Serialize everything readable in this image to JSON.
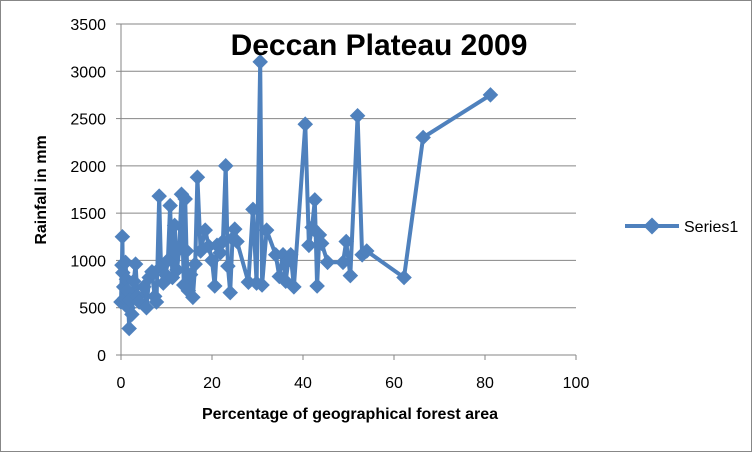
{
  "chart_data": {
    "type": "line",
    "title": "Deccan Plateau 2009",
    "xlabel": "Percentage of geographical forest area",
    "ylabel": "Rainfall in mm",
    "xlim": [
      0,
      100
    ],
    "ylim": [
      0,
      3500
    ],
    "x_ticks": [
      0,
      20,
      40,
      60,
      80,
      100
    ],
    "y_ticks": [
      0,
      500,
      1000,
      1500,
      2000,
      2500,
      3000,
      3500
    ],
    "grid": "horizontal",
    "legend_position": "right",
    "series_color": "#4f81bd",
    "series": [
      {
        "name": "Series1",
        "points": [
          [
            0.0,
            560
          ],
          [
            0.2,
            950
          ],
          [
            0.3,
            1250
          ],
          [
            0.4,
            870
          ],
          [
            0.6,
            720
          ],
          [
            0.8,
            600
          ],
          [
            1.0,
            980
          ],
          [
            1.2,
            800
          ],
          [
            1.4,
            680
          ],
          [
            1.6,
            500
          ],
          [
            1.8,
            280
          ],
          [
            2.0,
            580
          ],
          [
            2.4,
            430
          ],
          [
            2.8,
            780
          ],
          [
            3.2,
            960
          ],
          [
            3.6,
            620
          ],
          [
            4.0,
            560
          ],
          [
            5.0,
            720
          ],
          [
            5.6,
            500
          ],
          [
            6.2,
            820
          ],
          [
            6.8,
            880
          ],
          [
            7.4,
            620
          ],
          [
            7.8,
            560
          ],
          [
            8.4,
            1680
          ],
          [
            8.8,
            930
          ],
          [
            9.3,
            760
          ],
          [
            9.8,
            850
          ],
          [
            10.3,
            1000
          ],
          [
            10.8,
            1580
          ],
          [
            11.3,
            820
          ],
          [
            11.8,
            1370
          ],
          [
            12.3,
            900
          ],
          [
            12.8,
            1120
          ],
          [
            13.3,
            1700
          ],
          [
            13.8,
            740
          ],
          [
            14.1,
            1650
          ],
          [
            14.4,
            1100
          ],
          [
            14.8,
            680
          ],
          [
            15.3,
            850
          ],
          [
            15.8,
            610
          ],
          [
            16.3,
            960
          ],
          [
            16.8,
            1880
          ],
          [
            17.5,
            1100
          ],
          [
            18.5,
            1320
          ],
          [
            19.3,
            1150
          ],
          [
            20.0,
            1000
          ],
          [
            20.6,
            730
          ],
          [
            21.1,
            1160
          ],
          [
            21.8,
            1080
          ],
          [
            22.4,
            1200
          ],
          [
            23.0,
            2000
          ],
          [
            23.5,
            940
          ],
          [
            24.0,
            660
          ],
          [
            24.5,
            1230
          ],
          [
            25.0,
            1330
          ],
          [
            25.5,
            1200
          ],
          [
            28.0,
            770
          ],
          [
            29.0,
            1540
          ],
          [
            29.8,
            760
          ],
          [
            30.6,
            3100
          ],
          [
            31.0,
            740
          ],
          [
            32.0,
            1320
          ],
          [
            34.0,
            1060
          ],
          [
            34.8,
            830
          ],
          [
            35.6,
            1060
          ],
          [
            36.2,
            780
          ],
          [
            36.8,
            1000
          ],
          [
            37.3,
            1060
          ],
          [
            38.0,
            720
          ],
          [
            40.5,
            2440
          ],
          [
            41.3,
            1160
          ],
          [
            42.0,
            1350
          ],
          [
            42.6,
            1640
          ],
          [
            43.1,
            730
          ],
          [
            43.6,
            1270
          ],
          [
            44.1,
            1180
          ],
          [
            45.4,
            980
          ],
          [
            48.8,
            980
          ],
          [
            49.5,
            1200
          ],
          [
            50.4,
            840
          ],
          [
            52.0,
            2530
          ],
          [
            53.0,
            1060
          ],
          [
            54.0,
            1100
          ],
          [
            62.2,
            820
          ],
          [
            66.4,
            2300
          ],
          [
            81.2,
            2750
          ]
        ]
      }
    ]
  }
}
